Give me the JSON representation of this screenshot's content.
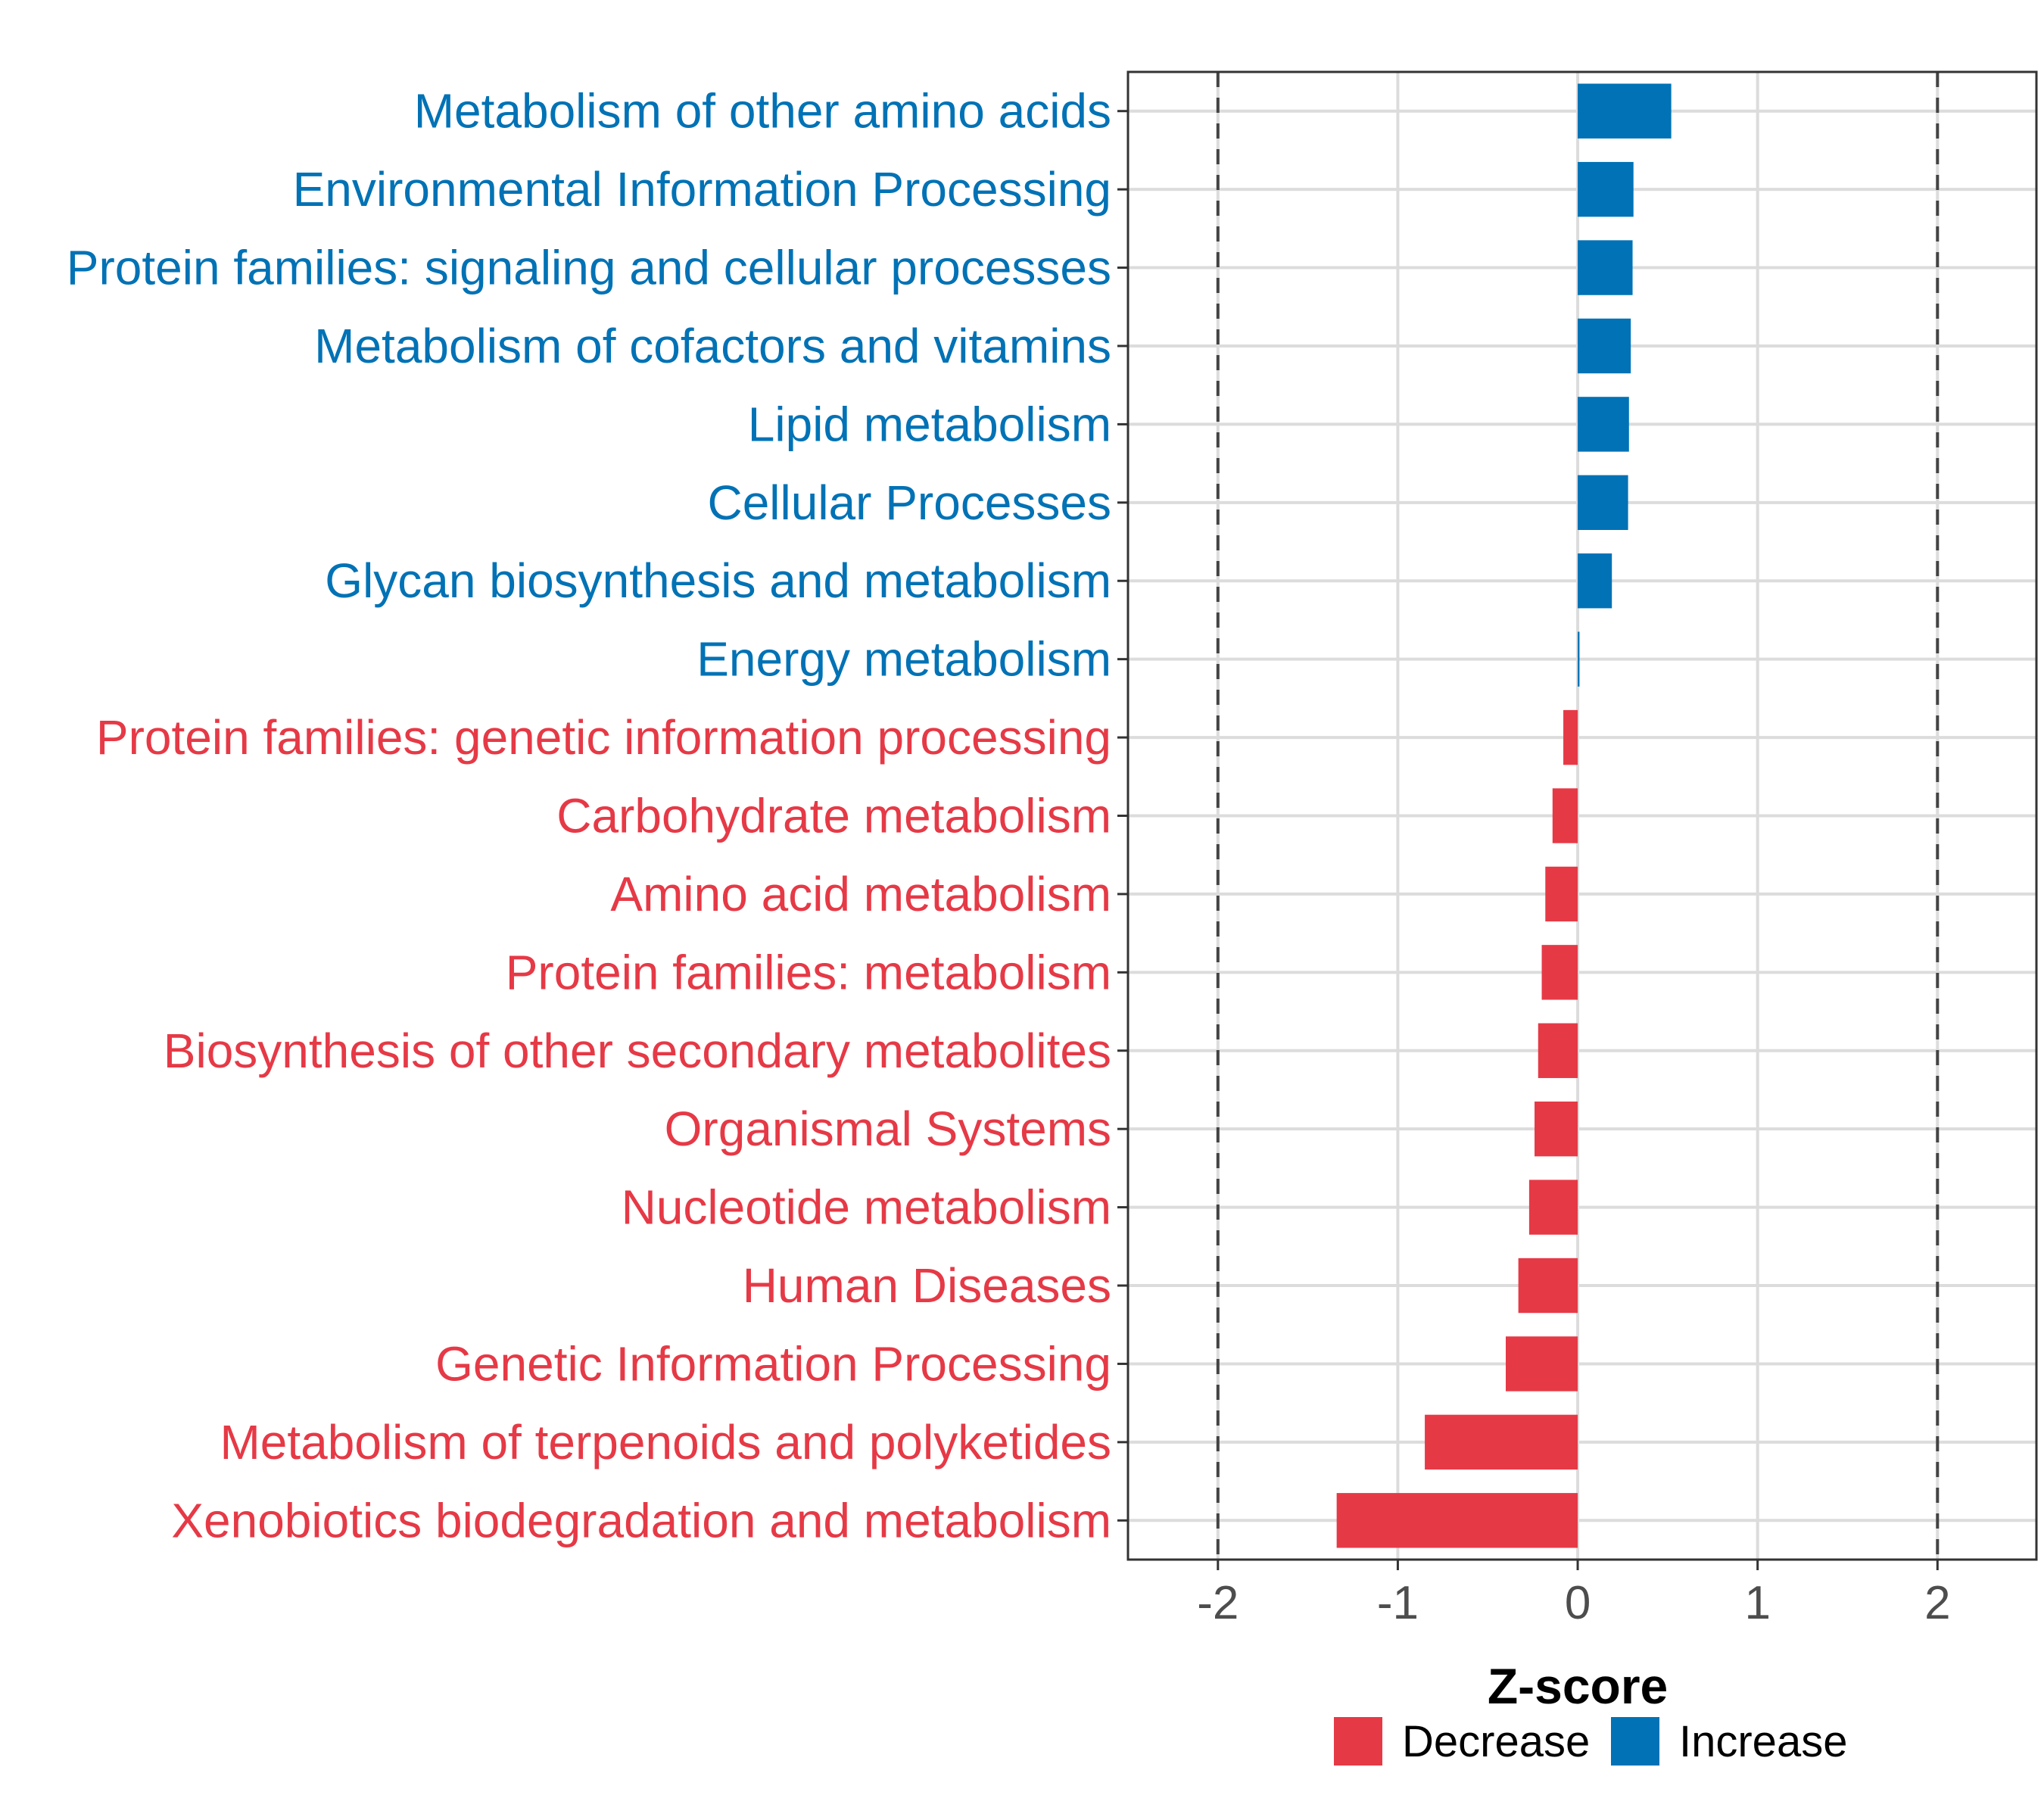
{
  "chart_data": {
    "type": "bar",
    "orientation": "horizontal",
    "xlabel": "Z-score",
    "xlim": [
      -2.5,
      2.55
    ],
    "xticks": [
      -2,
      -1,
      0,
      1,
      2
    ],
    "reference_lines": [
      -2,
      2
    ],
    "categories": [
      "Metabolism of other amino acids",
      "Environmental Information Processing",
      "Protein families: signaling and cellular processes",
      "Metabolism of cofactors and vitamins",
      "Lipid metabolism",
      "Cellular Processes",
      "Glycan biosynthesis and metabolism",
      "Energy metabolism",
      "Protein families: genetic information processing",
      "Carbohydrate metabolism",
      "Amino acid metabolism",
      "Protein families: metabolism",
      "Biosynthesis of other secondary metabolites",
      "Organismal Systems",
      "Nucleotide metabolism",
      "Human Diseases",
      "Genetic Information Processing",
      "Metabolism of terpenoids and polyketides",
      "Xenobiotics biodegradation and metabolism"
    ],
    "values": [
      0.52,
      0.31,
      0.305,
      0.295,
      0.285,
      0.28,
      0.19,
      0.01,
      -0.08,
      -0.14,
      -0.18,
      -0.2,
      -0.22,
      -0.24,
      -0.27,
      -0.33,
      -0.4,
      -0.85,
      -1.34
    ],
    "groups": [
      "Increase",
      "Increase",
      "Increase",
      "Increase",
      "Increase",
      "Increase",
      "Increase",
      "Increase",
      "Decrease",
      "Decrease",
      "Decrease",
      "Decrease",
      "Decrease",
      "Decrease",
      "Decrease",
      "Decrease",
      "Decrease",
      "Decrease",
      "Decrease"
    ],
    "legend": {
      "position": "bottom",
      "items": [
        {
          "label": "Decrease",
          "color": "#E63946"
        },
        {
          "label": "Increase",
          "color": "#0072B5"
        }
      ]
    },
    "colors": {
      "Increase": "#0072B5",
      "Decrease": "#E63946"
    },
    "grid": true
  }
}
